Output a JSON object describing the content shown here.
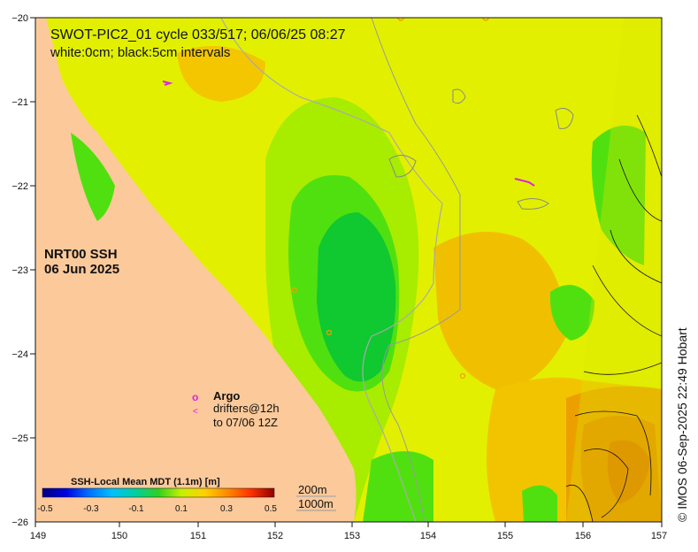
{
  "map": {
    "title_line1": "SWOT-PIC2_01 cycle 033/517; 06/06/25 08:27",
    "title_line2": "white:0cm; black:5cm intervals",
    "product_line1": "NRT00 SSH",
    "product_line2": "06 Jun 2025",
    "lon_ticks": [
      "149",
      "150",
      "151",
      "152",
      "153",
      "154",
      "155",
      "156",
      "157"
    ],
    "lat_ticks": [
      "−20",
      "−21",
      "−22",
      "−23",
      "−24",
      "−25",
      "−26"
    ],
    "lon_range": [
      149,
      157
    ],
    "lat_range": [
      -26,
      -20
    ],
    "credit": "© IMOS 06-Sep-2025 22:49 Hobart"
  },
  "legend": {
    "argo_symbol": "o",
    "argo_label": "Argo",
    "drifter_symbol": "<",
    "drifter_label_line1": "drifters@12h",
    "drifter_label_line2": "to 07/06 12Z"
  },
  "colorbar": {
    "title": "SSH-Local Mean MDT (1.1m) [m]",
    "ticks": [
      "-0.5",
      "-0.3",
      "-0.1",
      "0.1",
      "0.3",
      "0.5"
    ],
    "range": [
      -0.5,
      0.5
    ],
    "colors": [
      "#000080",
      "#0000d0",
      "#0060ff",
      "#00b0ff",
      "#00d8c0",
      "#00c830",
      "#50e010",
      "#c8f000",
      "#ffd800",
      "#ff8c00",
      "#ff3c00",
      "#d00000",
      "#800000"
    ]
  },
  "depth_legend": {
    "label_200": "200m",
    "label_1000": "1000m"
  },
  "colors": {
    "land": "#fbc99a",
    "sea_base": "#e2f000",
    "green_dark": "#10c830",
    "green_mid": "#50e010",
    "green_light": "#a8ec00",
    "orange_light": "#f5d600",
    "orange": "#f0b000",
    "orange_dark": "#e88a00",
    "argo": "#e020e0"
  }
}
